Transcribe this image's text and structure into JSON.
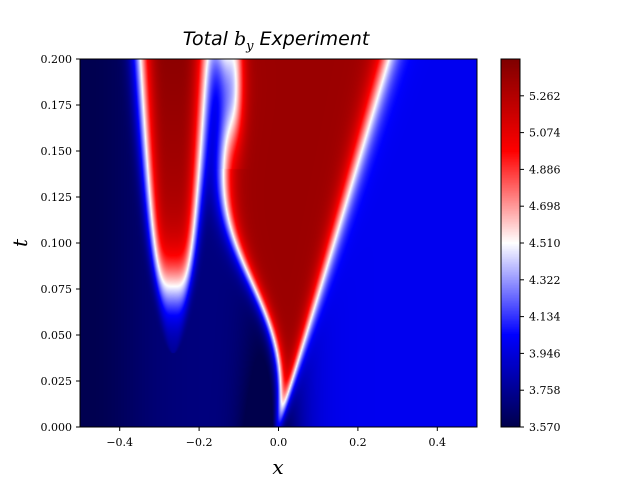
{
  "chart_data": {
    "type": "heatmap",
    "title_prefix": "Total",
    "title_symbol": "b",
    "title_subscript": "y",
    "title_suffix": "Experiment",
    "xlabel": "x",
    "ylabel": "t",
    "xlim": [
      -0.5,
      0.5
    ],
    "ylim": [
      0.0,
      0.2
    ],
    "x_ticks": [
      -0.4,
      -0.2,
      0.0,
      0.2,
      0.4
    ],
    "x_tick_labels": [
      "−0.4",
      "−0.2",
      "0.0",
      "0.2",
      "0.4"
    ],
    "y_ticks": [
      0.0,
      0.025,
      0.05,
      0.075,
      0.1,
      0.125,
      0.15,
      0.175,
      0.2
    ],
    "y_tick_labels": [
      "0.000",
      "0.025",
      "0.050",
      "0.075",
      "0.100",
      "0.125",
      "0.150",
      "0.175",
      "0.200"
    ],
    "colormap": "seismic",
    "colorbar": {
      "range": [
        3.57,
        5.45
      ],
      "ticks": [
        3.57,
        3.758,
        3.946,
        4.134,
        4.322,
        4.51,
        4.698,
        4.886,
        5.074,
        5.262
      ],
      "tick_labels": [
        "3.570",
        "3.758",
        "3.946",
        "4.134",
        "4.322",
        "4.510",
        "4.698",
        "4.886",
        "5.074",
        "5.262"
      ]
    },
    "grid": false,
    "features": {
      "background_left_value": 3.7,
      "background_right_value": 4.0,
      "left_lobe_center_x": -0.265,
      "left_lobe_min_t": 0.075,
      "left_lobe_peak_value": 5.4,
      "fan_apex_x": 0.0,
      "fan_apex_t": 0.0,
      "fan_edge_right_x_at_top": 0.27,
      "fan_peak_value": 5.35
    }
  }
}
